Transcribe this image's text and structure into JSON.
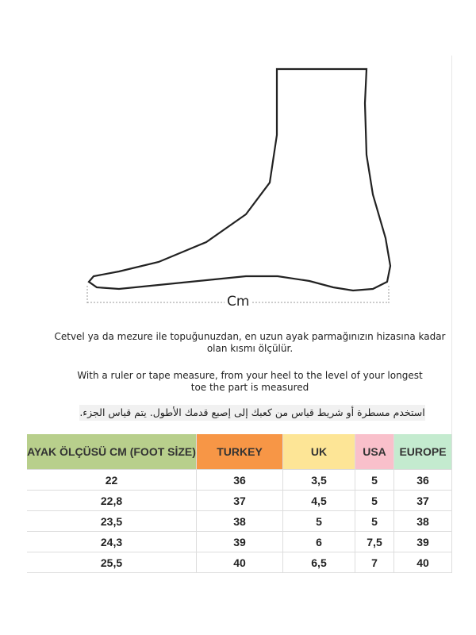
{
  "diagram": {
    "measure_label": "Cm"
  },
  "instructions": {
    "turkish": "Cetvel ya da mezure ile topuğunuzdan, en uzun ayak parmağınızın hizasına kadar olan kısmı ölçülür.",
    "english": "With a ruler or tape measure, from your heel to the level of your longest toe the part is measured",
    "arabic": "استخدم مسطرة أو شريط قياس من كعبك إلى إصبع قدمك الأطول. يتم قياس الجزء."
  },
  "table": {
    "headers": [
      {
        "label": "AYAK ÖLÇÜSÜ CM (FOOT SİZE)",
        "color": "#b8cf8c"
      },
      {
        "label": "TURKEY",
        "color": "#f79646"
      },
      {
        "label": "UK",
        "color": "#fde596"
      },
      {
        "label": "USA",
        "color": "#f9c0cb"
      },
      {
        "label": "EUROPE",
        "color": "#c4ebcf"
      }
    ],
    "rows": [
      [
        "22",
        "36",
        "3,5",
        "5",
        "36"
      ],
      [
        "22,8",
        "37",
        "4,5",
        "5",
        "37"
      ],
      [
        "23,5",
        "38",
        "5",
        "5",
        "38"
      ],
      [
        "24,3",
        "39",
        "6",
        "7,5",
        "39"
      ],
      [
        "25,5",
        "40",
        "6,5",
        "7",
        "40"
      ]
    ]
  }
}
